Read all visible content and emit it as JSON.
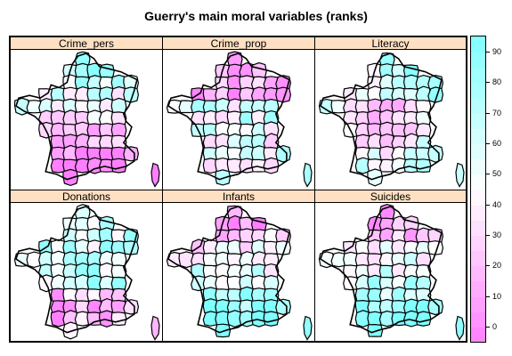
{
  "title": "Guerry's main moral variables (ranks)",
  "panels": [
    {
      "label": "Crime_pers",
      "shading": "north-cyan-south-magenta"
    },
    {
      "label": "Crime_prop",
      "shading": "north-magenta-center-cyan"
    },
    {
      "label": "Literacy",
      "shading": "northeast-white-center-magenta"
    },
    {
      "label": "Donations",
      "shading": "mixed-cyan-south-magenta"
    },
    {
      "label": "Infants",
      "shading": "north-magenta-south-cyan"
    },
    {
      "label": "Suicides",
      "shading": "north-magenta-south-cyan"
    }
  ],
  "colorkey": {
    "range": [
      -5,
      95
    ],
    "ticks": [
      "0",
      "10",
      "20",
      "30",
      "40",
      "50",
      "60",
      "70",
      "80",
      "90"
    ],
    "low_color": "#ff80ff",
    "mid_color": "#ffffff",
    "high_color": "#80ffff"
  }
}
